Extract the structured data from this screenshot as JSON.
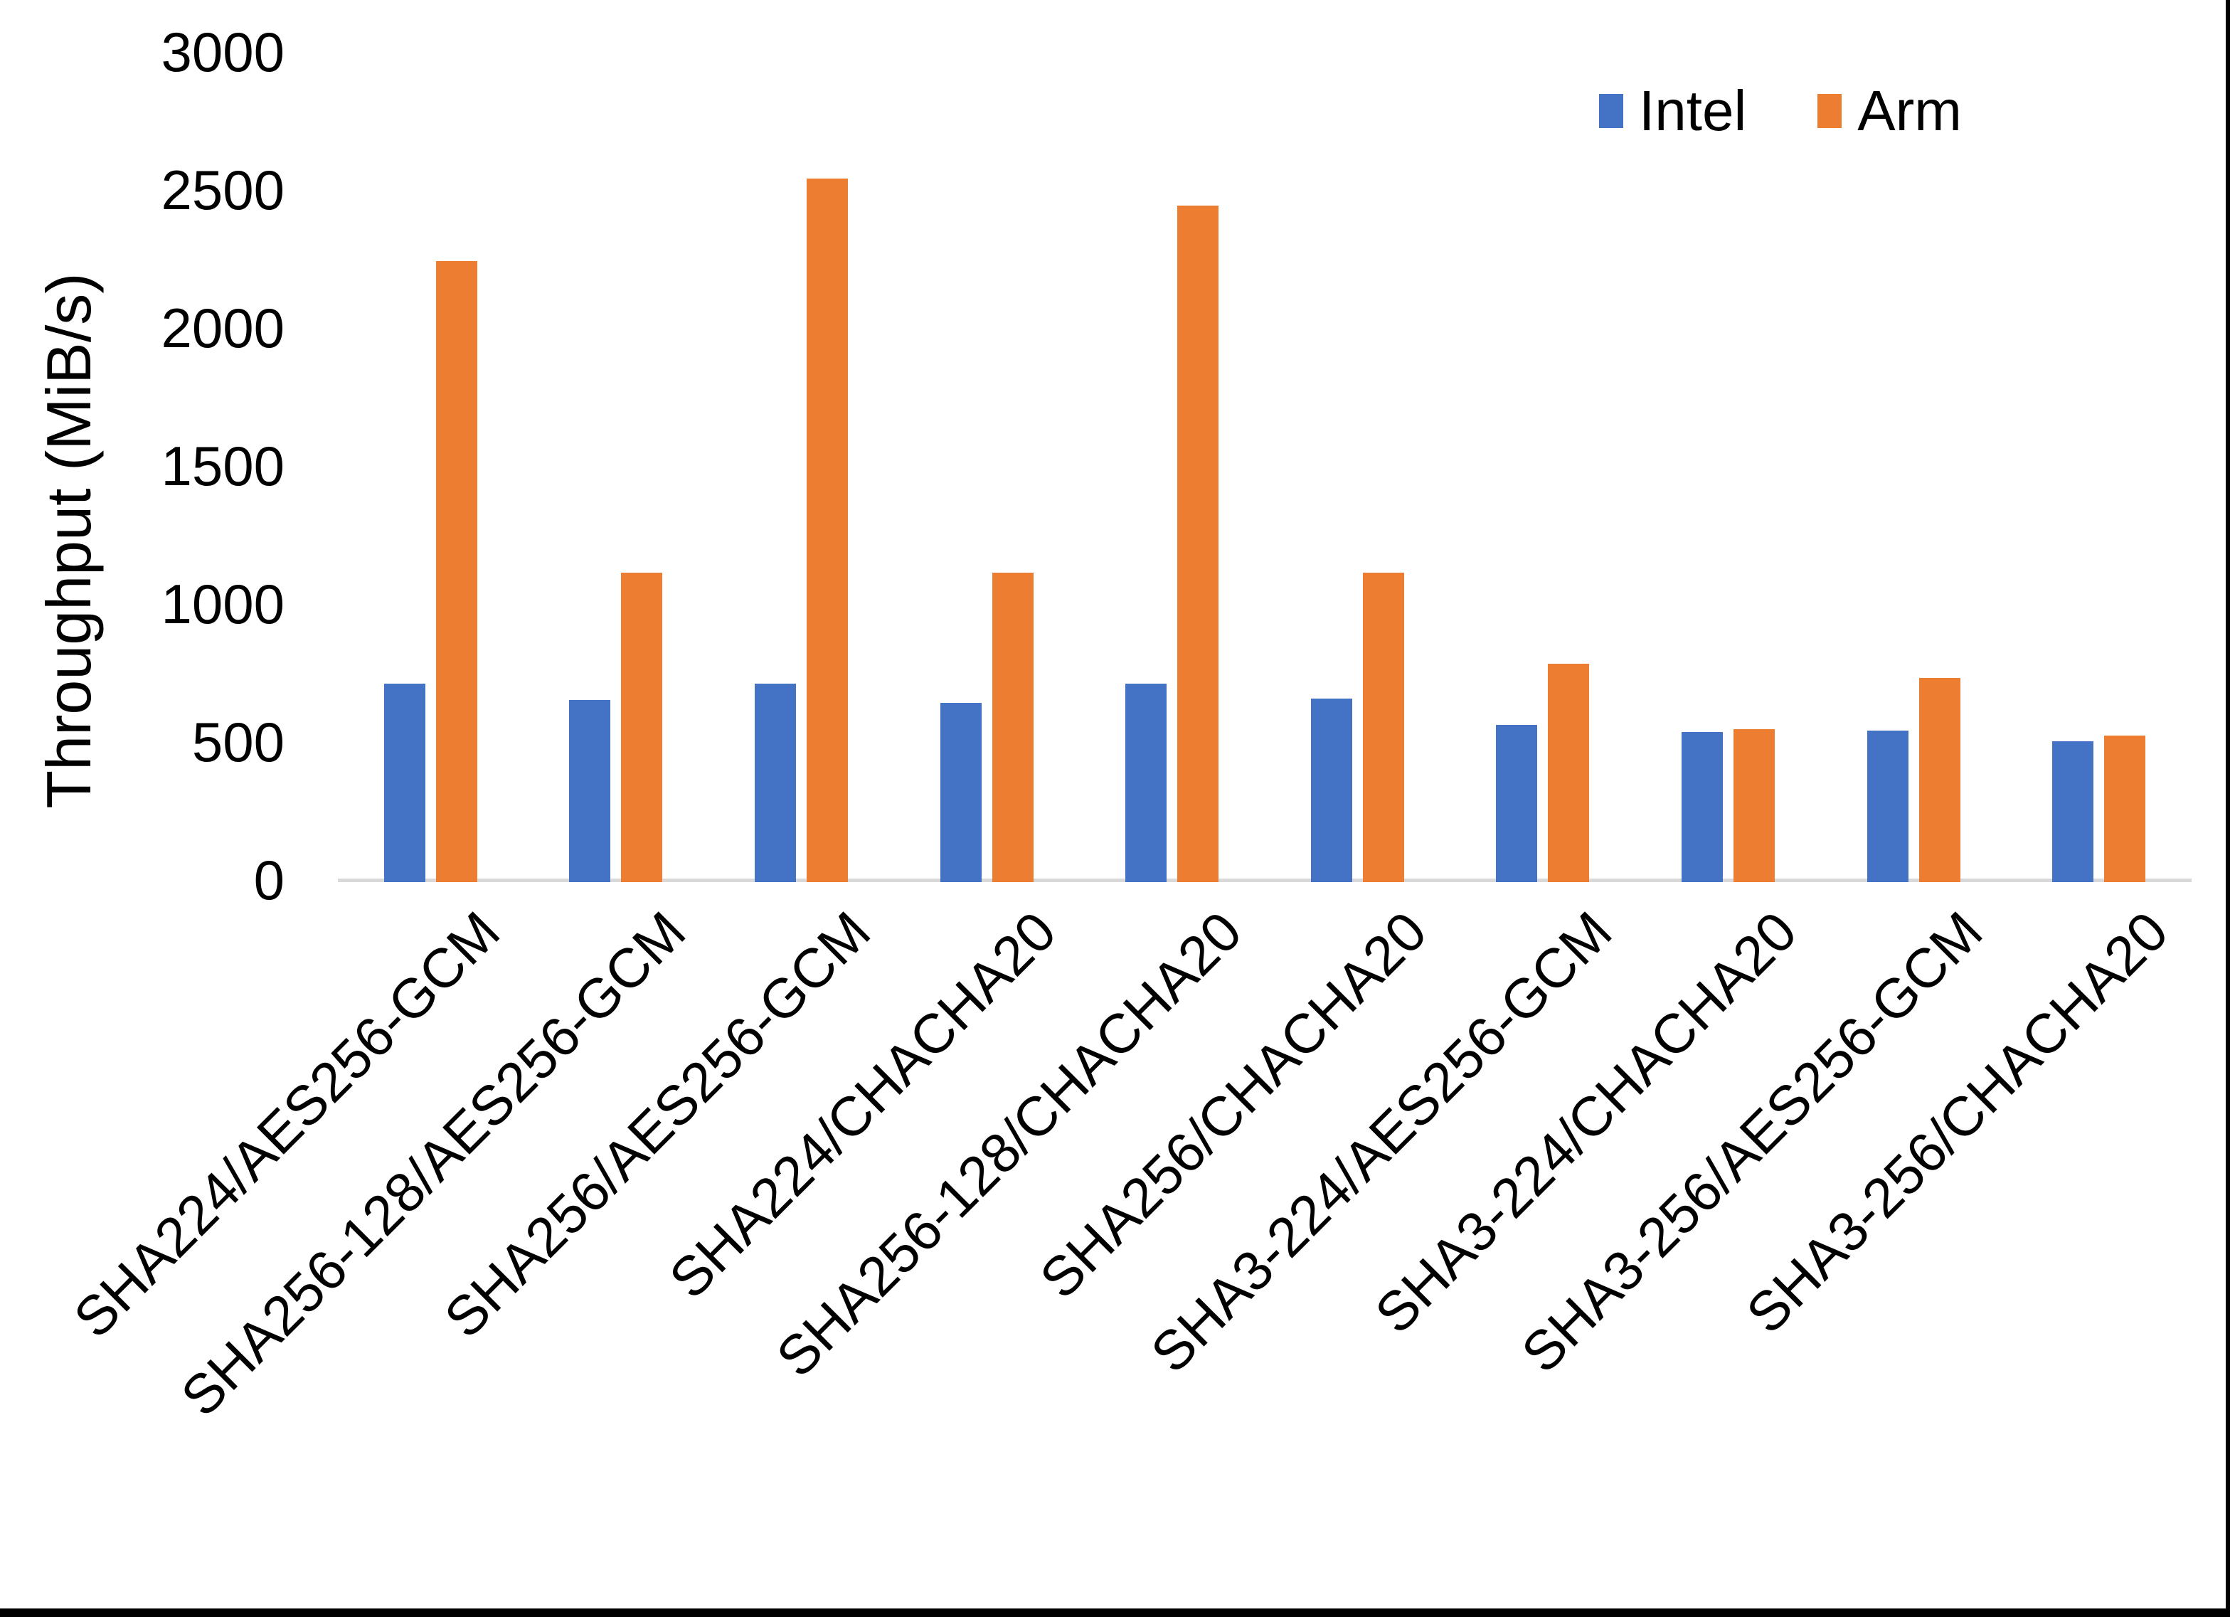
{
  "figure": {
    "background": "#ffffff",
    "page_border_color": "#000000",
    "axis_line_color": "#D9D9D9",
    "text_color": "#000000"
  },
  "chart_data": {
    "type": "bar",
    "title": "",
    "xlabel": "",
    "ylabel": "Throughput (MiB/s)",
    "ylim": [
      0,
      3000
    ],
    "y_ticks": [
      0,
      500,
      1000,
      1500,
      2000,
      2500,
      3000
    ],
    "grid": false,
    "legend_position": "top-right",
    "categories": [
      "SHA224/AES256-GCM",
      "SHA256-128/AES256-GCM",
      "SHA256/AES256-GCM",
      "SHA224/CHACHA20",
      "SHA256-128/CHACHA20",
      "SHA256/CHACHA20",
      "SHA3-224/AES256-GCM",
      "SHA3-224/CHACHA20",
      "SHA3-256/AES256-GCM",
      "SHA3-256/CHACHA20"
    ],
    "series": [
      {
        "name": "Intel",
        "color": "#4472C4",
        "values": [
          720,
          660,
          720,
          650,
          720,
          665,
          570,
          545,
          550,
          510
        ]
      },
      {
        "name": "Arm",
        "color": "#ED7D31",
        "values": [
          2250,
          1120,
          2550,
          1120,
          2450,
          1120,
          790,
          555,
          740,
          530
        ]
      }
    ]
  }
}
